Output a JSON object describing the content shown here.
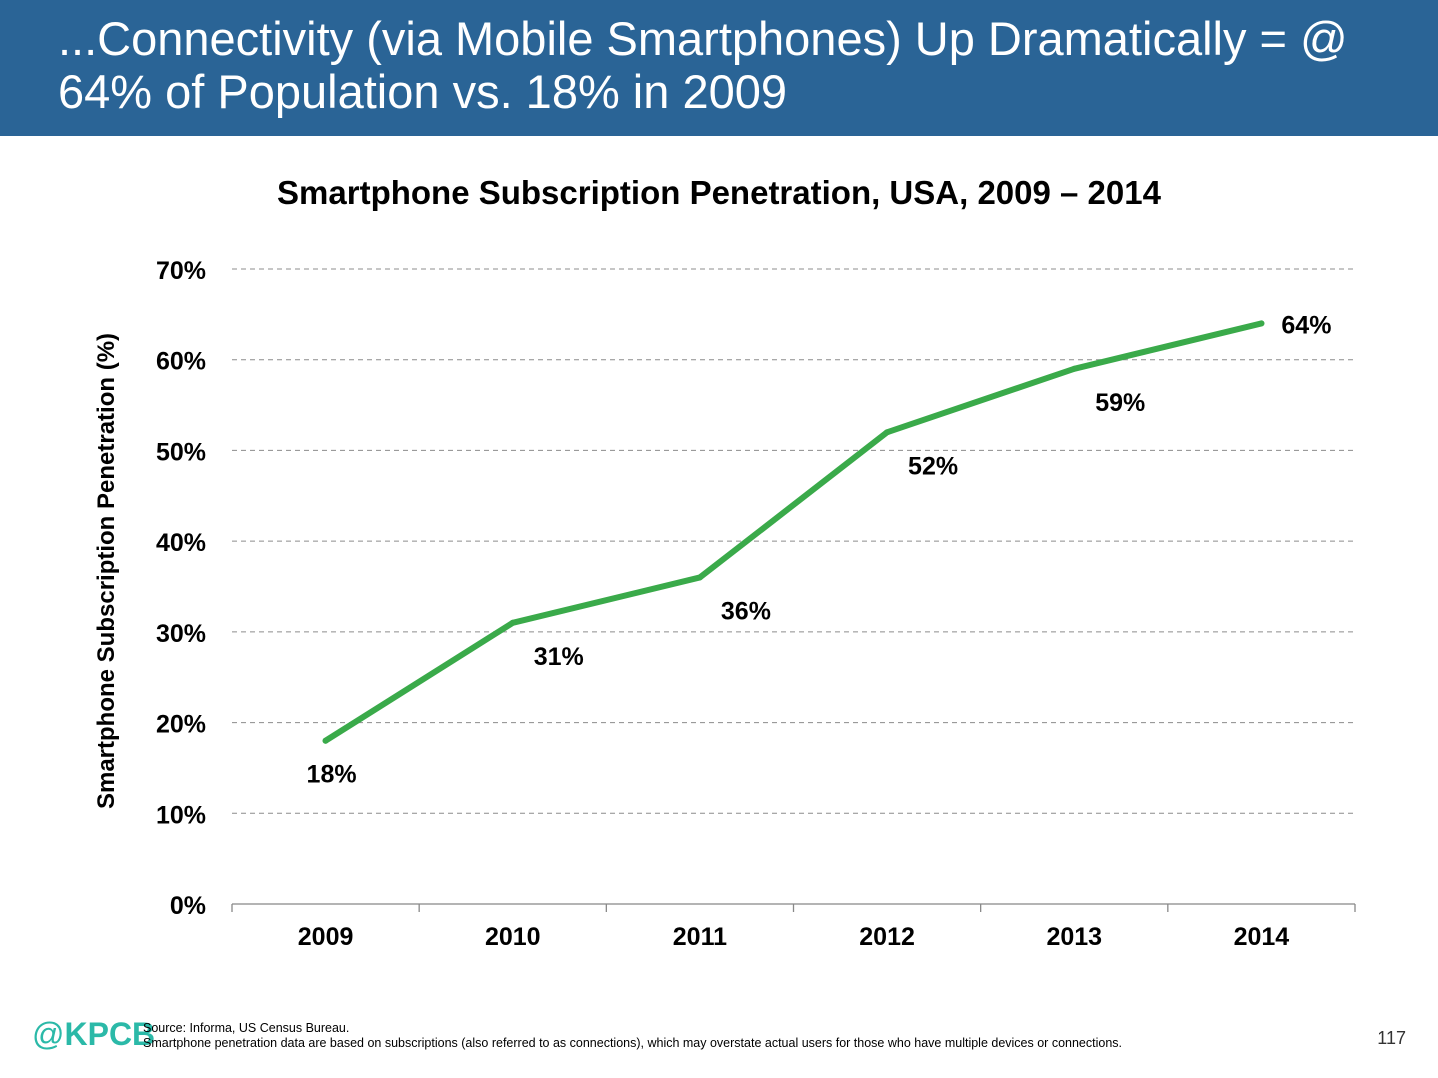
{
  "header": {
    "title": "...Connectivity (via Mobile Smartphones) Up Dramatically = @ 64% of Population vs. 18% in 2009"
  },
  "chart_data": {
    "type": "line",
    "title": "Smartphone Subscription Penetration, USA, 2009 – 2014",
    "xlabel": "",
    "ylabel": "Smartphone Subscription Penetration (%)",
    "categories": [
      "2009",
      "2010",
      "2011",
      "2012",
      "2013",
      "2014"
    ],
    "series": [
      {
        "values": [
          18,
          31,
          36,
          52,
          59,
          64
        ],
        "color": "#3aaa4a"
      }
    ],
    "data_labels": [
      "18%",
      "31%",
      "36%",
      "52%",
      "59%",
      "64%"
    ],
    "y_ticks": [
      "0%",
      "10%",
      "20%",
      "30%",
      "40%",
      "50%",
      "60%",
      "70%"
    ],
    "ylim": [
      0,
      70
    ],
    "grid": true,
    "grid_style": "dashed",
    "legend": "none"
  },
  "footer": {
    "logo_at": "@",
    "logo_text": "KPCB",
    "source_line": "Source: Informa, US Census Bureau.",
    "note_line": "Smartphone penetration data are based on subscriptions (also referred to as connections), which may overstate actual users for those who have multiple devices or connections.",
    "page_number": "117"
  },
  "colors": {
    "header_bg": "#2a6496",
    "line": "#3aaa4a",
    "logo": "#2bb9a8",
    "grid": "#8c8c8c"
  }
}
